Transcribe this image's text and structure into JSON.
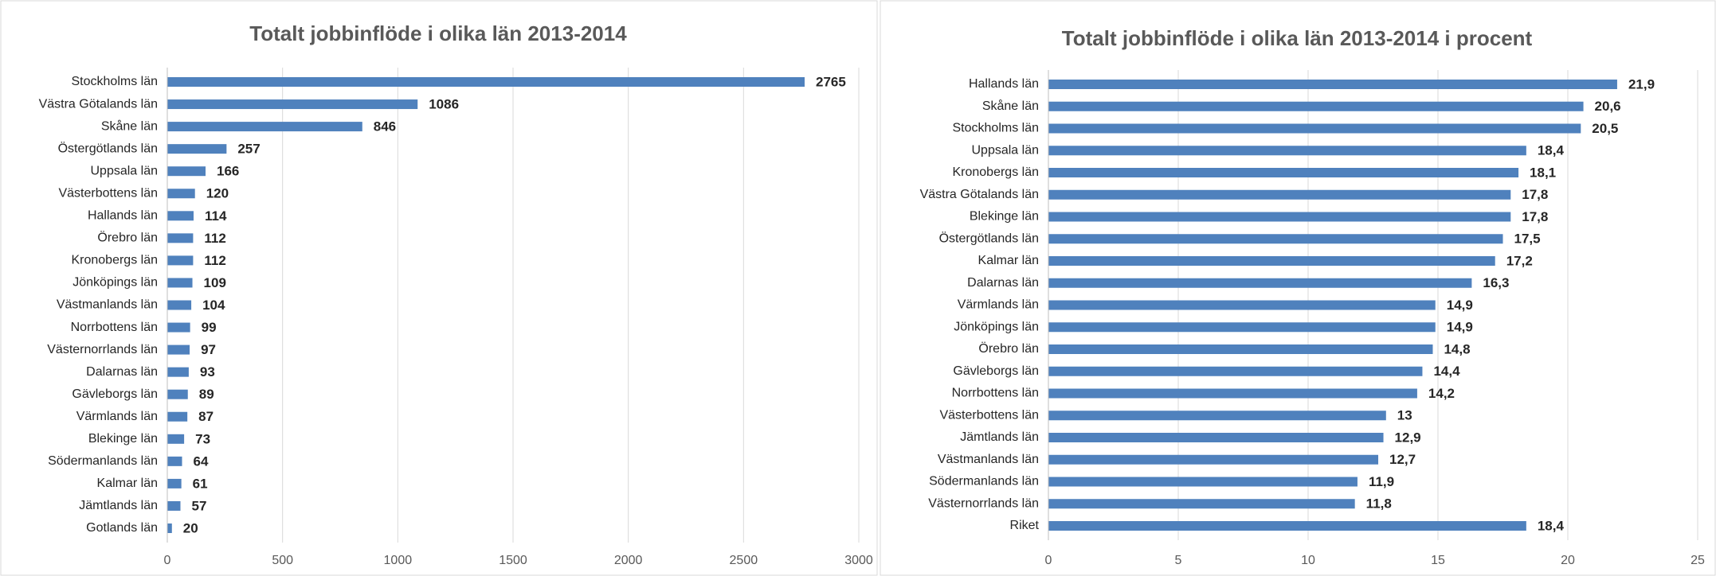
{
  "chart_data": [
    {
      "type": "bar",
      "orientation": "horizontal",
      "title": "Totalt jobbinflöde i olika län 2013-2014",
      "categories": [
        "Stockholms län",
        "Västra Götalands län",
        "Skåne län",
        "Östergötlands län",
        "Uppsala län",
        "Västerbottens län",
        "Hallands län",
        "Örebro län",
        "Kronobergs län",
        "Jönköpings län",
        "Västmanlands län",
        "Norrbottens län",
        "Västernorrlands län",
        "Dalarnas län",
        "Gävleborgs län",
        "Värmlands län",
        "Blekinge län",
        "Södermanlands län",
        "Kalmar län",
        "Jämtlands län",
        "Gotlands län"
      ],
      "values": [
        2765,
        1086,
        846,
        257,
        166,
        120,
        114,
        112,
        112,
        109,
        104,
        99,
        97,
        93,
        89,
        87,
        73,
        64,
        61,
        57,
        20
      ],
      "color": "#4f81bd",
      "xlim": [
        0,
        3000
      ],
      "xticks": [
        0,
        500,
        1000,
        1500,
        2000,
        2500,
        3000
      ],
      "grid": true
    },
    {
      "type": "bar",
      "orientation": "horizontal",
      "title": "Totalt jobbinflöde i olika län 2013-2014 i procent",
      "categories": [
        "Hallands län",
        "Skåne län",
        "Stockholms län",
        "Uppsala län",
        "Kronobergs län",
        "Västra Götalands län",
        "Blekinge län",
        "Östergötlands län",
        "Kalmar län",
        "Dalarnas län",
        "Värmlands län",
        "Jönköpings län",
        "Örebro län",
        "Gävleborgs län",
        "Norrbottens län",
        "Västerbottens län",
        "Jämtlands län",
        "Västmanlands län",
        "Södermanlands län",
        "Västernorrlands län",
        "Riket"
      ],
      "values": [
        21.9,
        20.6,
        20.5,
        18.4,
        18.1,
        17.8,
        17.8,
        17.5,
        17.2,
        16.3,
        14.9,
        14.9,
        14.8,
        14.4,
        14.2,
        13,
        12.9,
        12.7,
        11.9,
        11.8,
        18.4
      ],
      "value_labels": [
        "21,9",
        "20,6",
        "20,5",
        "18,4",
        "18,1",
        "17,8",
        "17,8",
        "17,5",
        "17,2",
        "16,3",
        "14,9",
        "14,9",
        "14,8",
        "14,4",
        "14,2",
        "13",
        "12,9",
        "12,7",
        "11,9",
        "11,8",
        "18,4"
      ],
      "color": "#4f81bd",
      "xlim": [
        0,
        25
      ],
      "xticks": [
        0,
        5,
        10,
        15,
        20,
        25
      ],
      "grid": true
    }
  ]
}
